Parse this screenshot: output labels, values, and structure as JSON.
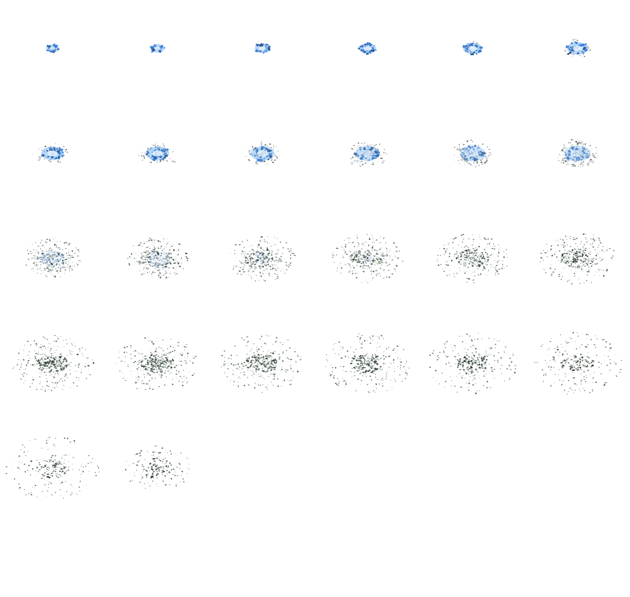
{
  "sprite_sheet": {
    "background_color": "#ffffff",
    "columns": 6,
    "rows": 6,
    "frame_count": 26,
    "palette": {
      "core_light": "#e6f3ff",
      "core_blue": "#7ab8f5",
      "shard_blue": "#3a7fd6",
      "shard_dark_blue": "#2a5a9a",
      "debris_light": "#d8dde2",
      "debris_grey": "#9aa4ad",
      "particle_dark": "#1e2a22",
      "particle_green": "#2d4a33"
    },
    "frames": [
      {
        "blue_spread": 0.16,
        "blue_intensity": 1.0,
        "particle_spread": 0.0,
        "particle_count": 0,
        "grey_amount": 0.0,
        "dark_core": 0.0,
        "particle_tone": 0.0
      },
      {
        "blue_spread": 0.17,
        "blue_intensity": 1.0,
        "particle_spread": 0.0,
        "particle_count": 2,
        "grey_amount": 0.0,
        "dark_core": 0.0,
        "particle_tone": 0.0
      },
      {
        "blue_spread": 0.19,
        "blue_intensity": 1.0,
        "particle_spread": 0.1,
        "particle_count": 6,
        "grey_amount": 0.0,
        "dark_core": 0.0,
        "particle_tone": 0.0
      },
      {
        "blue_spread": 0.21,
        "blue_intensity": 1.0,
        "particle_spread": 0.16,
        "particle_count": 14,
        "grey_amount": 0.0,
        "dark_core": 0.0,
        "particle_tone": 0.0
      },
      {
        "blue_spread": 0.23,
        "blue_intensity": 1.0,
        "particle_spread": 0.24,
        "particle_count": 26,
        "grey_amount": 0.0,
        "dark_core": 0.0,
        "particle_tone": 0.0
      },
      {
        "blue_spread": 0.25,
        "blue_intensity": 1.0,
        "particle_spread": 0.3,
        "particle_count": 40,
        "grey_amount": 0.0,
        "dark_core": 0.0,
        "particle_tone": 0.0
      },
      {
        "blue_spread": 0.27,
        "blue_intensity": 1.0,
        "particle_spread": 0.32,
        "particle_count": 70,
        "grey_amount": 0.05,
        "dark_core": 0.0,
        "particle_tone": 0.0
      },
      {
        "blue_spread": 0.28,
        "blue_intensity": 0.95,
        "particle_spread": 0.34,
        "particle_count": 80,
        "grey_amount": 0.1,
        "dark_core": 0.0,
        "particle_tone": 0.0
      },
      {
        "blue_spread": 0.29,
        "blue_intensity": 0.9,
        "particle_spread": 0.36,
        "particle_count": 90,
        "grey_amount": 0.15,
        "dark_core": 0.0,
        "particle_tone": 0.05
      },
      {
        "blue_spread": 0.3,
        "blue_intensity": 0.8,
        "particle_spread": 0.38,
        "particle_count": 100,
        "grey_amount": 0.3,
        "dark_core": 0.0,
        "particle_tone": 0.1
      },
      {
        "blue_spread": 0.31,
        "blue_intensity": 0.7,
        "particle_spread": 0.42,
        "particle_count": 120,
        "grey_amount": 0.5,
        "dark_core": 0.0,
        "particle_tone": 0.15
      },
      {
        "blue_spread": 0.32,
        "blue_intensity": 0.6,
        "particle_spread": 0.44,
        "particle_count": 130,
        "grey_amount": 0.6,
        "dark_core": 0.0,
        "particle_tone": 0.2
      },
      {
        "blue_spread": 0.3,
        "blue_intensity": 0.2,
        "particle_spread": 0.6,
        "particle_count": 220,
        "grey_amount": 0.7,
        "dark_core": 0.2,
        "particle_tone": 0.4
      },
      {
        "blue_spread": 0.28,
        "blue_intensity": 0.15,
        "particle_spread": 0.64,
        "particle_count": 230,
        "grey_amount": 0.6,
        "dark_core": 0.25,
        "particle_tone": 0.45
      },
      {
        "blue_spread": 0.2,
        "blue_intensity": 0.08,
        "particle_spread": 0.7,
        "particle_count": 240,
        "grey_amount": 0.45,
        "dark_core": 0.35,
        "particle_tone": 0.5
      },
      {
        "blue_spread": 0.12,
        "blue_intensity": 0.05,
        "particle_spread": 0.74,
        "particle_count": 240,
        "grey_amount": 0.35,
        "dark_core": 0.45,
        "particle_tone": 0.55
      },
      {
        "blue_spread": 0.0,
        "blue_intensity": 0.0,
        "particle_spread": 0.76,
        "particle_count": 240,
        "grey_amount": 0.25,
        "dark_core": 0.55,
        "particle_tone": 0.6
      },
      {
        "blue_spread": 0.0,
        "blue_intensity": 0.0,
        "particle_spread": 0.8,
        "particle_count": 240,
        "grey_amount": 0.15,
        "dark_core": 0.6,
        "particle_tone": 0.65
      },
      {
        "blue_spread": 0.0,
        "blue_intensity": 0.0,
        "particle_spread": 0.86,
        "particle_count": 260,
        "grey_amount": 0.05,
        "dark_core": 0.85,
        "particle_tone": 0.8
      },
      {
        "blue_spread": 0.0,
        "blue_intensity": 0.0,
        "particle_spread": 0.88,
        "particle_count": 260,
        "grey_amount": 0.05,
        "dark_core": 0.85,
        "particle_tone": 0.8
      },
      {
        "blue_spread": 0.0,
        "blue_intensity": 0.0,
        "particle_spread": 0.9,
        "particle_count": 260,
        "grey_amount": 0.05,
        "dark_core": 0.8,
        "particle_tone": 0.75
      },
      {
        "blue_spread": 0.0,
        "blue_intensity": 0.0,
        "particle_spread": 0.92,
        "particle_count": 250,
        "grey_amount": 0.05,
        "dark_core": 0.7,
        "particle_tone": 0.65
      },
      {
        "blue_spread": 0.0,
        "blue_intensity": 0.0,
        "particle_spread": 0.94,
        "particle_count": 230,
        "grey_amount": 0.05,
        "dark_core": 0.6,
        "particle_tone": 0.55
      },
      {
        "blue_spread": 0.0,
        "blue_intensity": 0.0,
        "particle_spread": 0.96,
        "particle_count": 210,
        "grey_amount": 0.05,
        "dark_core": 0.5,
        "particle_tone": 0.45
      },
      {
        "blue_spread": 0.0,
        "blue_intensity": 0.0,
        "particle_spread": 0.98,
        "particle_count": 180,
        "grey_amount": 0.0,
        "dark_core": 0.4,
        "particle_tone": 0.35
      },
      {
        "blue_spread": 0.0,
        "blue_intensity": 0.0,
        "particle_spread": 0.7,
        "particle_count": 140,
        "grey_amount": 0.0,
        "dark_core": 0.3,
        "particle_tone": 0.3
      }
    ]
  }
}
